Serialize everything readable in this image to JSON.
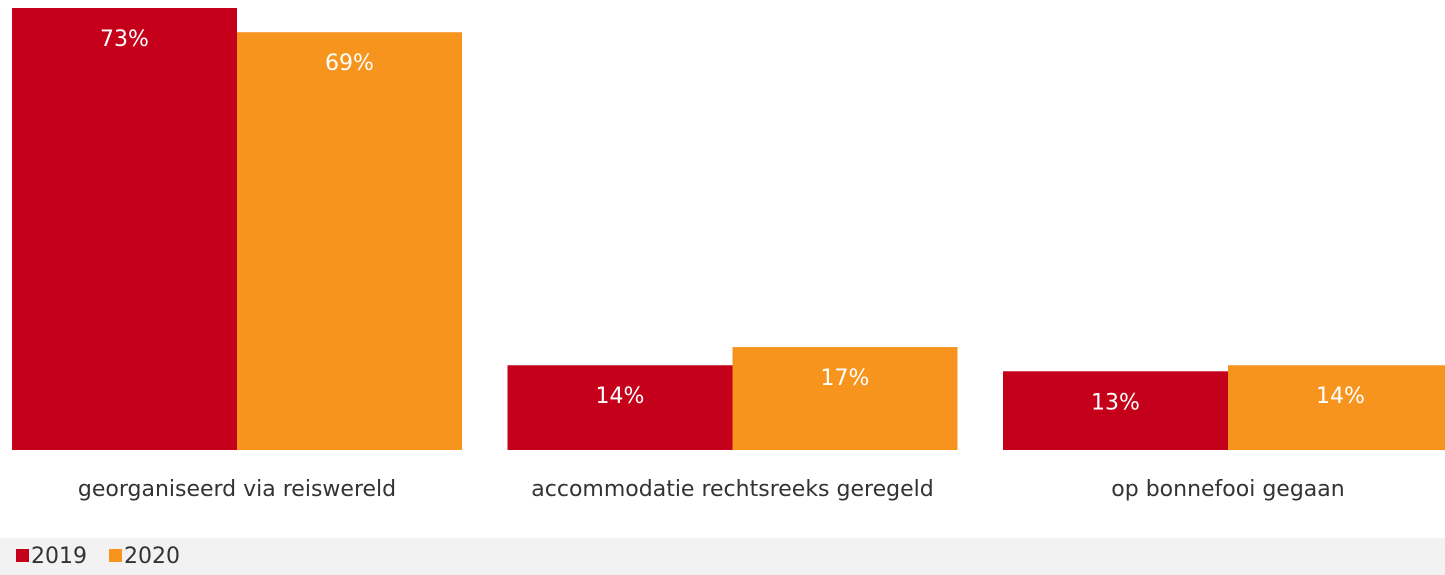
{
  "chart_data": {
    "type": "bar",
    "categories": [
      "georganiseerd via reiswereld",
      "accommodatie rechtsreeks geregeld",
      "op bonnefooi gegaan"
    ],
    "series": [
      {
        "name": "2019",
        "color": "#c4001a",
        "values": [
          73,
          14,
          13
        ],
        "value_labels": [
          "73%",
          "14%",
          "13%"
        ]
      },
      {
        "name": "2020",
        "color": "#f7941d",
        "values": [
          69,
          17,
          14
        ],
        "value_labels": [
          "69%",
          "17%",
          "14%"
        ]
      }
    ]
  }
}
